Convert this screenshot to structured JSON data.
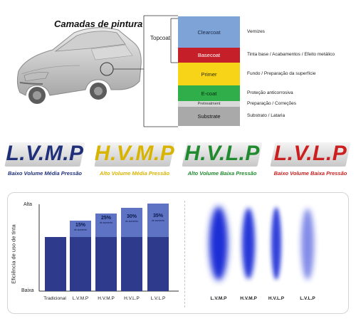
{
  "layers": {
    "title": "Camadas de pintura",
    "topcoat_label": "Topcoat",
    "items": [
      {
        "name": "Clearcoat",
        "desc": "Vernizes",
        "color": "#7ea3d6",
        "text_color": "#1a2a4a"
      },
      {
        "name": "Basecoat",
        "desc": "Tinta base / Acabamentos / Efeito metálico",
        "color": "#c5202a",
        "text_color": "#ffffff"
      },
      {
        "name": "Primer",
        "desc": "Fundo / Preparação da superfície",
        "color": "#f7d417",
        "text_color": "#2a2a00"
      },
      {
        "name": "E-coat",
        "desc": "Proteção anticorrosiva",
        "color": "#2fae49",
        "text_color": "#0a2a10"
      },
      {
        "name": "Pretreatment",
        "desc": "Preparação / Correções",
        "color": "#d9d9d9",
        "text_color": "#333333"
      },
      {
        "name": "Substrate",
        "desc": "Substrato / Lataria",
        "color": "#a9a9a9",
        "text_color": "#111111"
      }
    ]
  },
  "logos": [
    {
      "abbr": "L.V.M.P",
      "sub": "Baixo Volume Média Pressão",
      "color": "#1f2f7a"
    },
    {
      "abbr": "H.V.M.P",
      "sub": "Alto Volume Média Pressão",
      "color": "#d8b400"
    },
    {
      "abbr": "H.V.L.P",
      "sub": "Alto Volume Baixa Pressão",
      "color": "#1f8a2e"
    },
    {
      "abbr": "L.V.L.P",
      "sub": "Baixo Volume Baixa Pressão",
      "color": "#cc1f1f"
    }
  ],
  "efficiency": {
    "ylabel": "Eficiência de uso de tinta",
    "y_high": "Alta",
    "y_low": "Baixa",
    "bar_color": "#2e3a8c",
    "increase_color": "#5e73c4",
    "bars": [
      {
        "label": "Tradicional",
        "pct": "",
        "sub": ""
      },
      {
        "label": "L.V.M.P",
        "pct": "15%",
        "sub": "de aumento"
      },
      {
        "label": "H.V.M.P",
        "pct": "25%",
        "sub": "de aumento"
      },
      {
        "label": "H.V.L.P",
        "pct": "30%",
        "sub": "de aumento"
      },
      {
        "label": "L.V.L.P",
        "pct": "35%",
        "sub": "de aumento"
      }
    ]
  },
  "sprays": {
    "color": "#1c2fd6",
    "labels": [
      "L.V.M.P",
      "H.V.M.P",
      "H.V.L.P",
      "L.V.L.P"
    ]
  }
}
